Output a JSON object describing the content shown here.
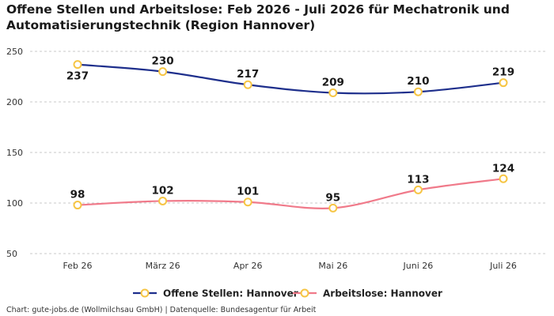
{
  "title": "Offene Stellen und Arbeitslose: Feb 2026 - Juli 2026 für Mechatronik und Automatisierungstechnik (Region Hannover)",
  "source": "Chart: gute-jobs.de (Wollmilchsau GmbH) | Datenquelle: Bundesagentur für Arbeit",
  "chart_data": {
    "type": "line",
    "categories": [
      "Feb 26",
      "März 26",
      "Apr 26",
      "Mai 26",
      "Juni 26",
      "Juli 26"
    ],
    "ylim": [
      50,
      250
    ],
    "yticks": [
      50,
      100,
      150,
      200,
      250
    ],
    "grid": true,
    "legend_position": "bottom",
    "series": [
      {
        "name": "Offene Stellen: Hannover",
        "values": [
          237,
          230,
          217,
          209,
          210,
          219
        ],
        "color": "#1e2f8c",
        "marker_color": "#f6c544"
      },
      {
        "name": "Arbeitslose: Hannover",
        "values": [
          98,
          102,
          101,
          95,
          113,
          124
        ],
        "color": "#f07a8a",
        "marker_color": "#f6c544"
      }
    ]
  }
}
